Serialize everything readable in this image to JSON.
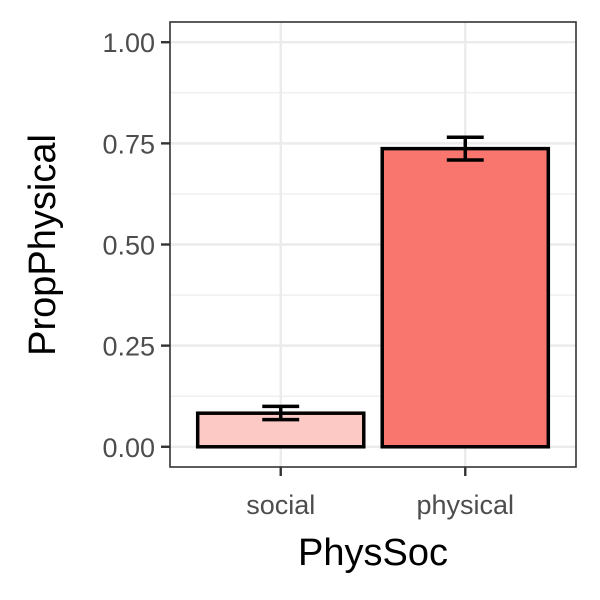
{
  "chart_data": {
    "type": "bar",
    "xlabel": "PhysSoc",
    "ylabel": "PropPhysical",
    "categories": [
      "social",
      "physical"
    ],
    "values": [
      0.083,
      0.737
    ],
    "error_low": [
      0.067,
      0.709
    ],
    "error_high": [
      0.1,
      0.765
    ],
    "ylim": [
      -0.05,
      1.05
    ],
    "yticks": [
      {
        "value": 0,
        "label": "0.00"
      },
      {
        "value": 0.25,
        "label": "0.25"
      },
      {
        "value": 0.5,
        "label": "0.50"
      },
      {
        "value": 0.75,
        "label": "0.75"
      },
      {
        "value": 1,
        "label": "1.00"
      }
    ],
    "grid": true,
    "legend": "none",
    "bar_colors": [
      "#FCC9C5",
      "#F8766D"
    ],
    "bar_outline": "#000000",
    "grid_color": "#EBEBEB",
    "panel_border": "#333333"
  }
}
